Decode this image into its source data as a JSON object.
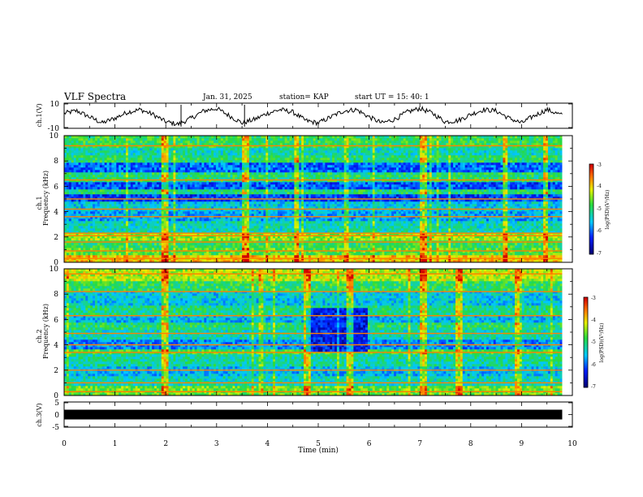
{
  "header": {
    "title": "VLF Spectra",
    "date": "Jan. 31, 2025",
    "station": "station= KAP",
    "start": "start  UT  =   15: 40: 1"
  },
  "chart_data": [
    {
      "type": "line",
      "panel": "ch1-waveform",
      "ylabel": "ch.1(V)",
      "ylim": [
        -10,
        10
      ],
      "yticks": [
        "10",
        "-10"
      ],
      "xlim": [
        0,
        10
      ],
      "x": [
        0.0,
        0.25,
        0.5,
        0.75,
        1.0,
        1.25,
        1.5,
        1.75,
        2.0,
        2.25,
        2.5,
        2.75,
        3.0,
        3.25,
        3.5,
        3.75,
        4.0,
        4.25,
        4.5,
        4.75,
        5.0,
        5.25,
        5.5,
        5.75,
        6.0,
        6.25,
        6.5,
        6.75,
        7.0,
        7.25,
        7.5,
        7.75,
        8.0,
        8.25,
        8.5,
        8.75,
        9.0,
        9.25,
        9.5,
        9.75
      ],
      "values": [
        2,
        4,
        -1,
        -6,
        -2,
        3,
        5,
        1,
        -5,
        -7,
        -2,
        4,
        6,
        0,
        -6,
        -3,
        2,
        5,
        3,
        -4,
        -6,
        -1,
        4,
        5,
        -1,
        -6,
        -3,
        3,
        6,
        2,
        -5,
        -4,
        1,
        5,
        4,
        -2,
        -6,
        0,
        5,
        1
      ]
    },
    {
      "type": "heatmap",
      "panel": "ch1-spectrogram",
      "ylabel": "ch.1\nFrequency (kHz)",
      "ylim": [
        0,
        10
      ],
      "yticks": [
        "0",
        "2",
        "4",
        "6",
        "8",
        "10"
      ],
      "xlim": [
        0,
        10
      ],
      "zlim": [
        -7,
        -3
      ],
      "colorbar_label": "log(PSD)(V²/Hz)",
      "colorbar_ticks": [
        "-3",
        "-4",
        "-5",
        "-6",
        "-7"
      ],
      "bands": [
        {
          "f0": 0.0,
          "f1": 0.5,
          "level": -3.9
        },
        {
          "f0": 0.5,
          "f1": 1.2,
          "level": -4.7
        },
        {
          "f0": 1.2,
          "f1": 1.8,
          "level": -4.9
        },
        {
          "f0": 1.8,
          "f1": 2.4,
          "level": -4.4
        },
        {
          "f0": 2.4,
          "f1": 3.2,
          "level": -5.3
        },
        {
          "f0": 3.2,
          "f1": 4.0,
          "level": -5.7
        },
        {
          "f0": 4.0,
          "f1": 4.8,
          "level": -5.5
        },
        {
          "f0": 4.8,
          "f1": 5.4,
          "level": -6.2
        },
        {
          "f0": 5.4,
          "f1": 5.8,
          "level": -5.0
        },
        {
          "f0": 5.8,
          "f1": 6.4,
          "level": -6.1
        },
        {
          "f0": 6.4,
          "f1": 7.2,
          "level": -5.0
        },
        {
          "f0": 7.2,
          "f1": 7.8,
          "level": -6.0
        },
        {
          "f0": 7.8,
          "f1": 8.5,
          "level": -5.0
        },
        {
          "f0": 8.5,
          "f1": 9.0,
          "level": -5.3
        },
        {
          "f0": 9.0,
          "f1": 10.0,
          "level": -4.9
        }
      ],
      "lines_khz": [
        0.3,
        0.9,
        1.6,
        2.1,
        2.3,
        3.6,
        4.2,
        5.0,
        6.5,
        9.2
      ],
      "bursts_min": [
        1.95,
        3.55,
        4.55,
        7.05,
        8.65,
        9.45
      ]
    },
    {
      "type": "heatmap",
      "panel": "ch2-spectrogram",
      "ylabel": "ch.2\nFrequency (kHz)",
      "ylim": [
        0,
        10
      ],
      "yticks": [
        "0",
        "2",
        "4",
        "6",
        "8",
        "10"
      ],
      "xlim": [
        0,
        10
      ],
      "zlim": [
        -7,
        -3
      ],
      "colorbar_label": "log(PSD)(V²/Hz)",
      "colorbar_ticks": [
        "-3",
        "-4",
        "-5",
        "-6",
        "-7"
      ],
      "bands": [
        {
          "f0": 0.0,
          "f1": 0.8,
          "level": -4.6
        },
        {
          "f0": 0.8,
          "f1": 1.6,
          "level": -5.3
        },
        {
          "f0": 1.6,
          "f1": 2.4,
          "level": -5.6
        },
        {
          "f0": 2.4,
          "f1": 3.2,
          "level": -5.2
        },
        {
          "f0": 3.2,
          "f1": 3.6,
          "level": -4.8
        },
        {
          "f0": 3.6,
          "f1": 4.4,
          "level": -5.8
        },
        {
          "f0": 4.4,
          "f1": 5.2,
          "level": -5.3
        },
        {
          "f0": 5.2,
          "f1": 5.8,
          "level": -5.0
        },
        {
          "f0": 5.8,
          "f1": 6.4,
          "level": -5.6
        },
        {
          "f0": 6.4,
          "f1": 7.2,
          "level": -5.1
        },
        {
          "f0": 7.2,
          "f1": 8.2,
          "level": -5.5
        },
        {
          "f0": 8.2,
          "f1": 9.0,
          "level": -4.9
        },
        {
          "f0": 9.0,
          "f1": 10.0,
          "level": -4.3
        }
      ],
      "lines_khz": [
        0.3,
        1.0,
        2.0,
        3.4,
        4.0,
        4.9,
        6.3,
        8.2,
        9.6
      ],
      "bursts_min": [
        1.95,
        4.75,
        5.6,
        7.05,
        7.75,
        8.9
      ],
      "patch": {
        "t0": 4.75,
        "t1": 5.95,
        "f0": 3.5,
        "f1": 7.0,
        "level": -6.4
      }
    },
    {
      "type": "line",
      "panel": "ch3-waveform",
      "ylabel": "ch.3(V)",
      "ylim": [
        -5,
        5
      ],
      "yticks": [
        "5",
        "0",
        "-5"
      ],
      "xlim": [
        0,
        10
      ],
      "xticks": [
        "0",
        "1",
        "2",
        "3",
        "4",
        "5",
        "6",
        "7",
        "8",
        "9",
        "10"
      ],
      "xlabel": "Time (min)",
      "x": [
        0,
        9.8
      ],
      "values": [
        0,
        0
      ],
      "band_amplitude": 0.5
    }
  ]
}
